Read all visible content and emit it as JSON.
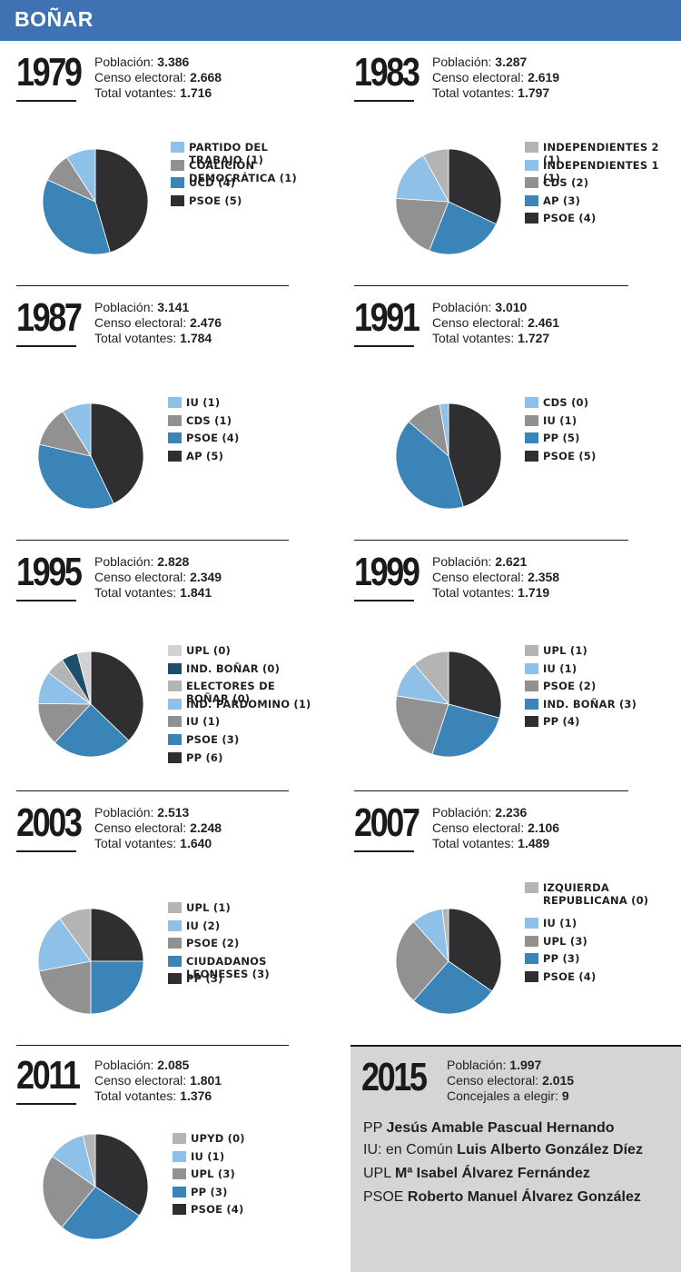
{
  "header": {
    "title": "BOÑAR"
  },
  "labels": {
    "poblacion": "Población:",
    "censo": "Censo electoral:",
    "votantes": "Total votantes:",
    "concejales": "Concejales a elegir:"
  },
  "colors": {
    "header": "#3f72b2",
    "box_bg": "#d4d5d6"
  },
  "chart_data": [
    {
      "type": "pie",
      "year": "1979",
      "poblacion": "3.386",
      "censo": "2.668",
      "votantes": "1.716",
      "slices": [
        {
          "label": "PARTIDO DEL TRABAJO (1)",
          "value": 1,
          "color": "#8fc1e8"
        },
        {
          "label": "COALICIÓN DEMOCRÁTICA (1)",
          "value": 1,
          "color": "#919191"
        },
        {
          "label": "UCD (4)",
          "value": 4,
          "color": "#3a84b8"
        },
        {
          "label": "PSOE (5)",
          "value": 5,
          "color": "#2f2f31"
        }
      ]
    },
    {
      "type": "pie",
      "year": "1983",
      "poblacion": "3.287",
      "censo": "2.619",
      "votantes": "1.797",
      "slices": [
        {
          "label": "INDEPENDIENTES 2 (1)",
          "value": 1,
          "color": "#b4b4b4"
        },
        {
          "label": "INDEPENDIENTES 1 (1)",
          "value": 2,
          "color": "#8fc1e8"
        },
        {
          "label": "CDS (2)",
          "value": 2.5,
          "color": "#919191"
        },
        {
          "label": "AP (3)",
          "value": 3,
          "color": "#3a84b8"
        },
        {
          "label": "PSOE (4)",
          "value": 4,
          "color": "#2f2f31"
        }
      ]
    },
    {
      "type": "pie",
      "year": "1987",
      "poblacion": "3.141",
      "censo": "2.476",
      "votantes": "1.784",
      "slices": [
        {
          "label": "IU (1)",
          "value": 1,
          "color": "#8fc1e8"
        },
        {
          "label": "CDS (1)",
          "value": 1.4,
          "color": "#919191"
        },
        {
          "label": "PSOE (4)",
          "value": 4,
          "color": "#3a84b8"
        },
        {
          "label": "AP (5)",
          "value": 4.8,
          "color": "#2f2f31"
        }
      ]
    },
    {
      "type": "pie",
      "year": "1991",
      "poblacion": "3.010",
      "censo": "2.461",
      "votantes": "1.727",
      "slices": [
        {
          "label": "CDS (0)",
          "value": 0.3,
          "color": "#8fc1e8"
        },
        {
          "label": "IU (1)",
          "value": 1.2,
          "color": "#919191"
        },
        {
          "label": "PP (5)",
          "value": 4.5,
          "color": "#3a84b8"
        },
        {
          "label": "PSOE (5)",
          "value": 5,
          "color": "#2f2f31"
        }
      ]
    },
    {
      "type": "pie",
      "year": "1995",
      "poblacion": "2.828",
      "censo": "2.349",
      "votantes": "1.841",
      "slices": [
        {
          "label": "UPL (0)",
          "value": 0.5,
          "color": "#d2d2d2"
        },
        {
          "label": "IND. BOÑAR (0)",
          "value": 0.6,
          "color": "#1d4e6b"
        },
        {
          "label": "ELECTORES DE BOÑAR (0)",
          "value": 0.7,
          "color": "#b4b4b4"
        },
        {
          "label": "IND. PARDOMINO (1)",
          "value": 1.2,
          "color": "#8fc1e8"
        },
        {
          "label": "IU (1)",
          "value": 1.6,
          "color": "#919191"
        },
        {
          "label": "PSOE (3)",
          "value": 3,
          "color": "#3a84b8"
        },
        {
          "label": "PP (6)",
          "value": 4.5,
          "color": "#2f2f31"
        }
      ]
    },
    {
      "type": "pie",
      "year": "1999",
      "poblacion": "2.621",
      "censo": "2.358",
      "votantes": "1.719",
      "slices": [
        {
          "label": "UPL (1)",
          "value": 1,
          "color": "#b4b4b4"
        },
        {
          "label": "IU (1)",
          "value": 1,
          "color": "#8fc1e8"
        },
        {
          "label": "PSOE (2)",
          "value": 2,
          "color": "#919191"
        },
        {
          "label": "IND. BOÑAR (3)",
          "value": 2.3,
          "color": "#3a84b8"
        },
        {
          "label": "PP (4)",
          "value": 2.6,
          "color": "#2f2f31"
        }
      ]
    },
    {
      "type": "pie",
      "year": "2003",
      "poblacion": "2.513",
      "censo": "2.248",
      "votantes": "1.640",
      "slices": [
        {
          "label": "UPL (1)",
          "value": 1,
          "color": "#b4b4b4"
        },
        {
          "label": "IU (2)",
          "value": 1.8,
          "color": "#8fc1e8"
        },
        {
          "label": "PSOE (2)",
          "value": 2.2,
          "color": "#919191"
        },
        {
          "label": "CIUDADANOS LEONESES (3)",
          "value": 2.5,
          "color": "#3a84b8"
        },
        {
          "label": "PP (3)",
          "value": 2.5,
          "color": "#2f2f31"
        }
      ]
    },
    {
      "type": "pie",
      "year": "2007",
      "poblacion": "2.236",
      "censo": "2.106",
      "votantes": "1.489",
      "slices": [
        {
          "label": "IZQUIERDA REPUBLICANA  (0)",
          "value": 0.2,
          "color": "#b4b4b4"
        },
        {
          "label": "IU (1)",
          "value": 1,
          "color": "#8fc1e8"
        },
        {
          "label": "UPL (3)",
          "value": 2.8,
          "color": "#919191"
        },
        {
          "label": "PP (3)",
          "value": 2.8,
          "color": "#3a84b8"
        },
        {
          "label": "PSOE (4)",
          "value": 3.6,
          "color": "#2f2f31"
        }
      ]
    },
    {
      "type": "pie",
      "year": "2011",
      "poblacion": "2.085",
      "censo": "1.801",
      "votantes": "1.376",
      "slices": [
        {
          "label": "UPYD (0)",
          "value": 0.4,
          "color": "#b4b4b4"
        },
        {
          "label": "IU (1)",
          "value": 1.2,
          "color": "#8fc1e8"
        },
        {
          "label": "UPL (3)",
          "value": 2.5,
          "color": "#919191"
        },
        {
          "label": "PP (3)",
          "value": 2.8,
          "color": "#3a84b8"
        },
        {
          "label": "PSOE (4)",
          "value": 3.6,
          "color": "#2f2f31"
        }
      ]
    }
  ],
  "y2015": {
    "year": "2015",
    "poblacion": "1.997",
    "censo": "2.015",
    "concejales": "9",
    "candidates": [
      {
        "party": "PP",
        "name": "Jesús Amable Pascual Hernando"
      },
      {
        "party": "IU: en Común",
        "name": "Luis Alberto González Díez"
      },
      {
        "party": "UPL",
        "name": "Mª Isabel Álvarez Fernández"
      },
      {
        "party": "PSOE",
        "name": "Roberto Manuel Álvarez González"
      }
    ]
  }
}
